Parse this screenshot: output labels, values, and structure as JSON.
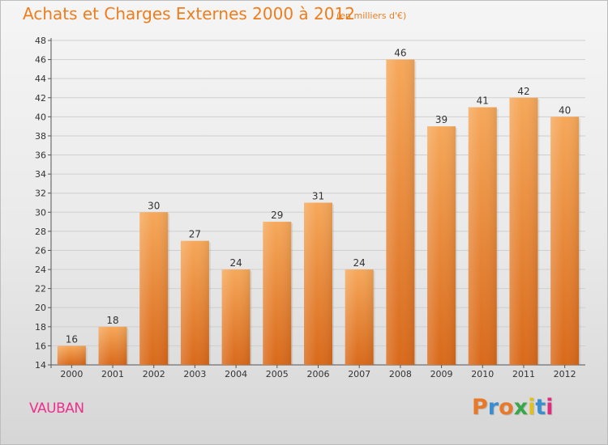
{
  "header": {
    "title": "Achats et Charges Externes 2000 à 2012",
    "subtitle": "(en milliers d'€)"
  },
  "footer": {
    "place": "VAUBAN",
    "logo_text": "Proxiti",
    "logo_colors": [
      "#e8792a",
      "#3a8ed0",
      "#e8792a",
      "#3aa64a",
      "#e0c020",
      "#3a8ed0",
      "#e02a7a"
    ]
  },
  "colors": {
    "accent": "#ee7d1e",
    "place": "#ee2f8b",
    "bar_top": "#f6a85a",
    "bar_bottom": "#d9691a"
  },
  "chart_data": {
    "type": "bar",
    "categories": [
      "2000",
      "2001",
      "2002",
      "2003",
      "2004",
      "2005",
      "2006",
      "2007",
      "2008",
      "2009",
      "2010",
      "2011",
      "2012"
    ],
    "values": [
      16,
      18,
      30,
      27,
      24,
      29,
      31,
      24,
      46,
      39,
      41,
      42,
      40
    ],
    "title": "Achats et Charges Externes 2000 à 2012",
    "subtitle": "(en milliers d'€)",
    "ylim": [
      14,
      48
    ],
    "yticks": [
      14,
      16,
      18,
      20,
      22,
      24,
      26,
      28,
      30,
      32,
      34,
      36,
      38,
      40,
      42,
      44,
      46,
      48
    ],
    "grid": true,
    "data_labels": true
  }
}
